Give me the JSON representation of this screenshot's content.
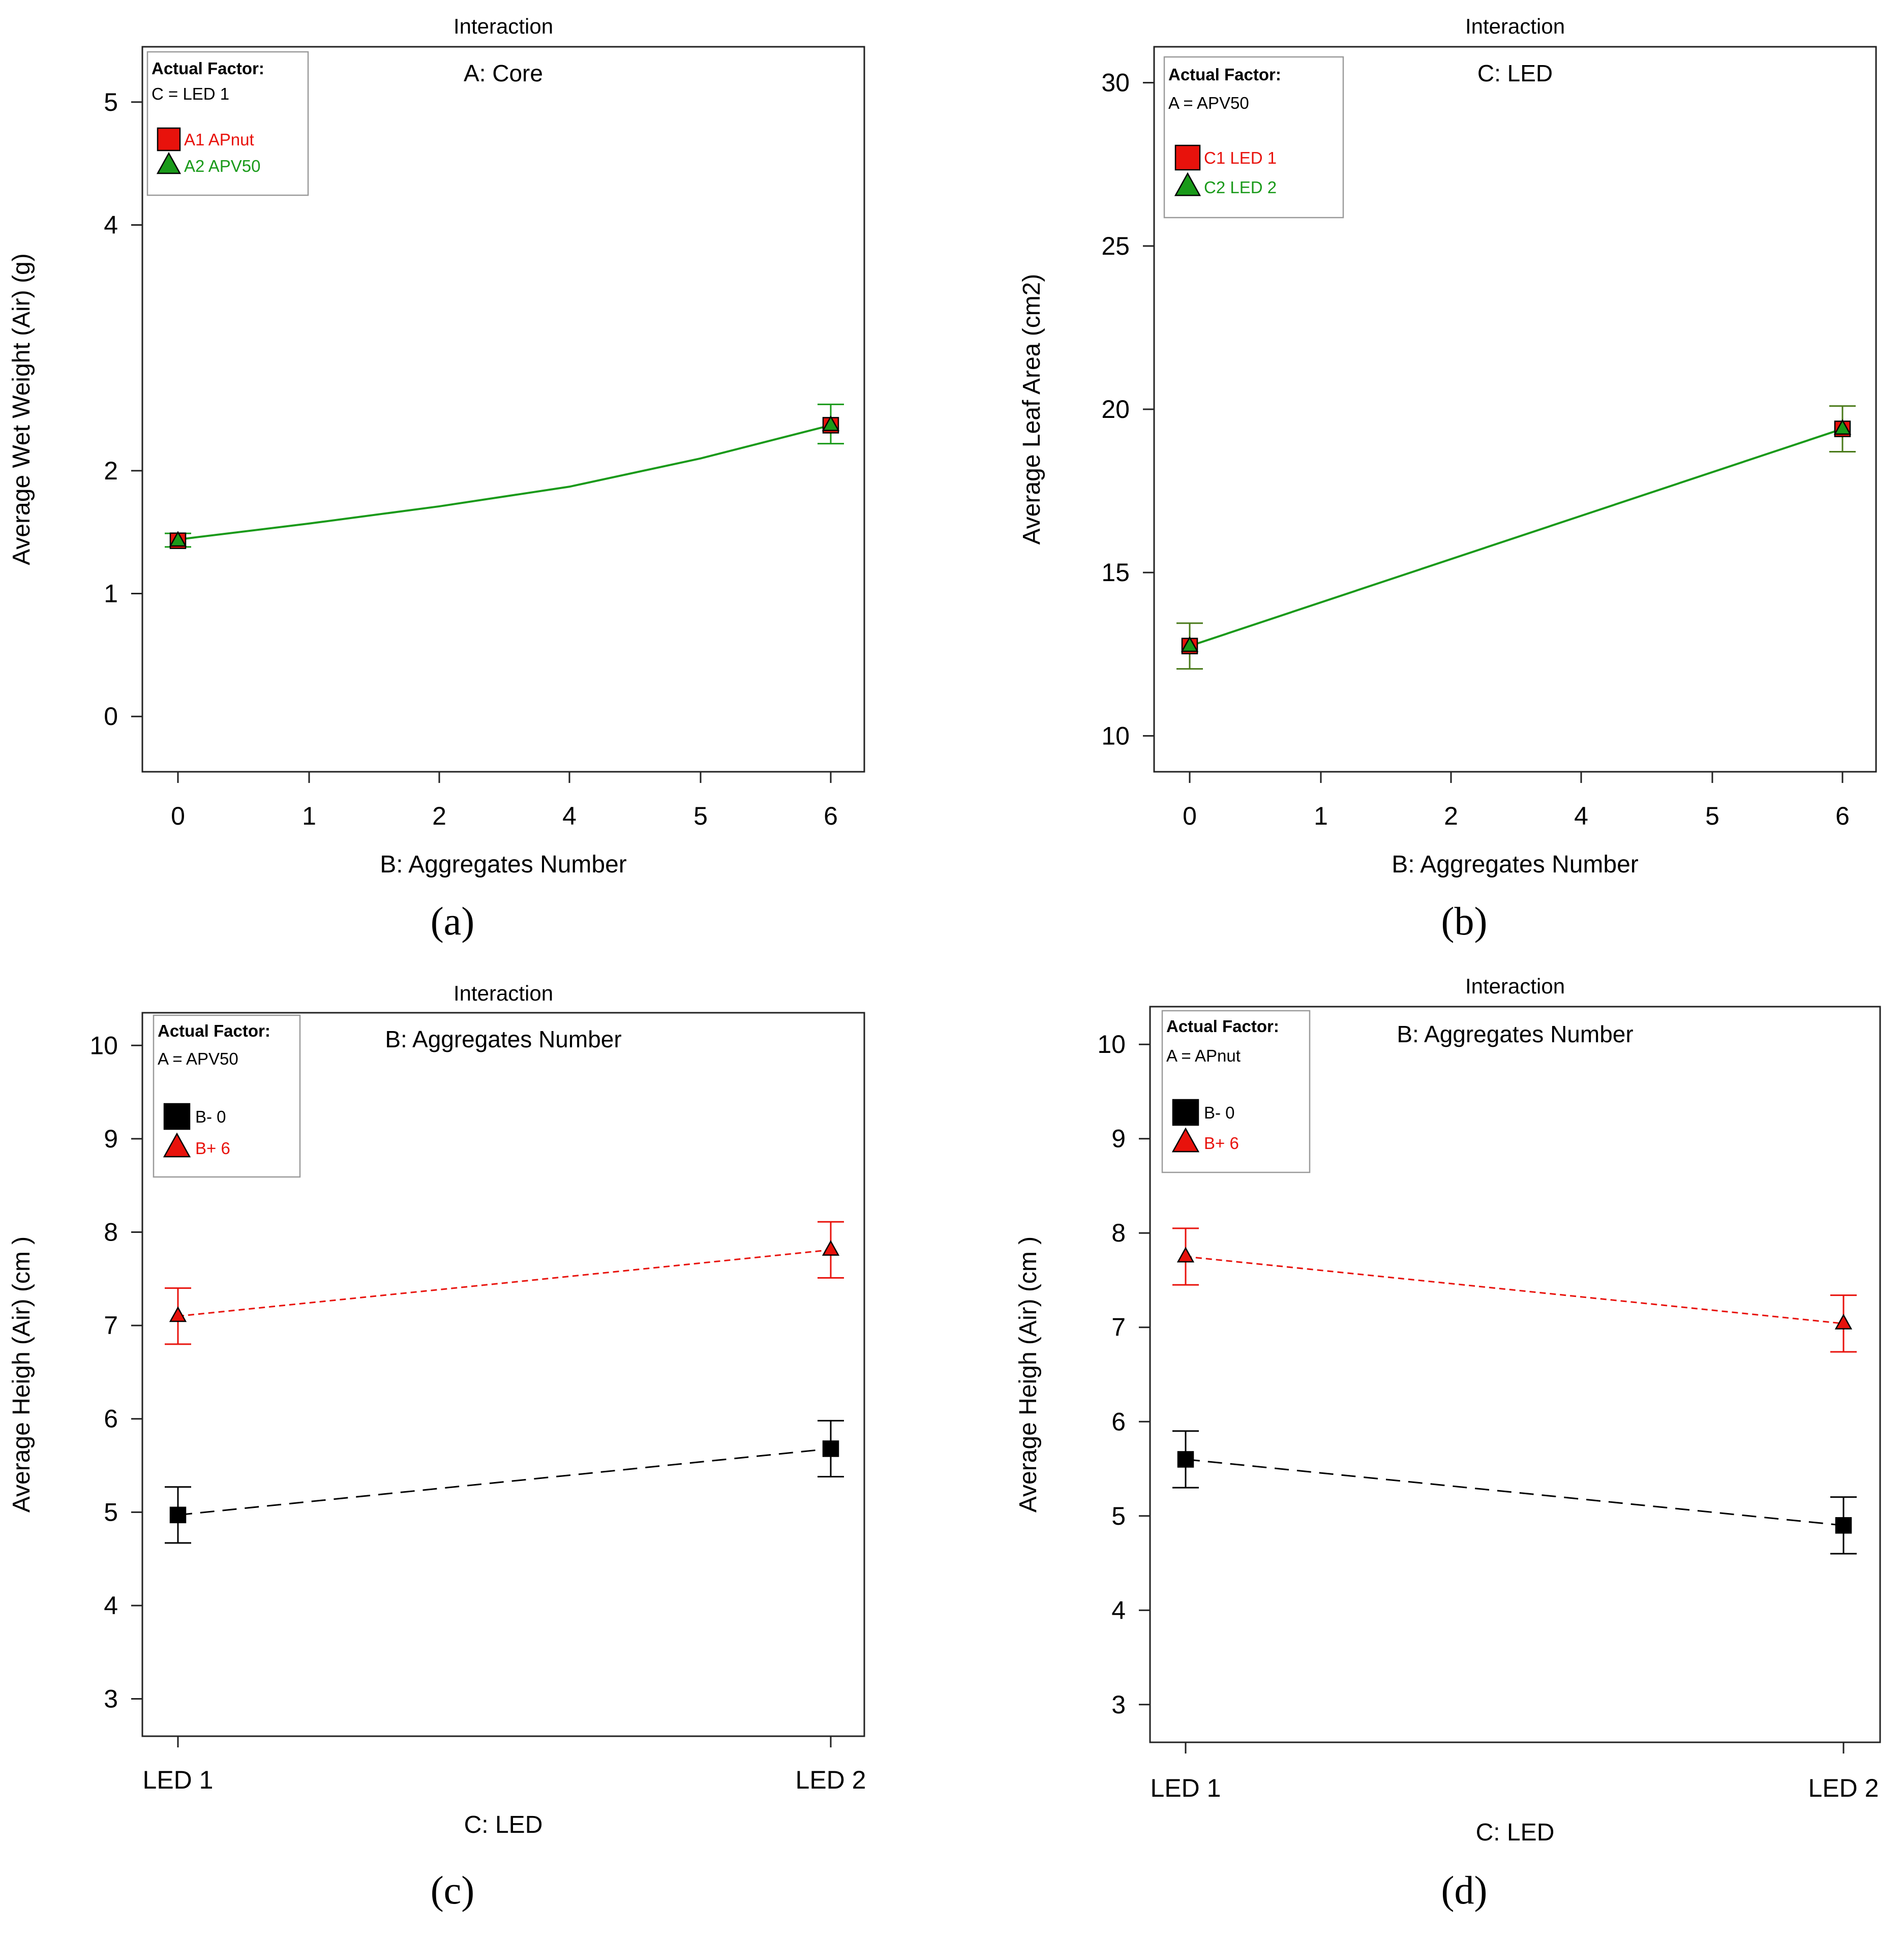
{
  "colors": {
    "red": "#e8120c",
    "green": "#1a9a1a",
    "dark_green": "#4a7a1a",
    "black": "#000000",
    "frame": "#222222",
    "legend_border": "#9a9a9a"
  },
  "chart_data": [
    {
      "type": "line",
      "panel_label": "(a)",
      "title": "Interaction",
      "factor_label": "A: Core",
      "xlabel": "B: Aggregates Number",
      "ylabel": "Average Wet Weight (Air) (g)",
      "categories": [
        "0",
        "1",
        "2",
        "4",
        "5",
        "6"
      ],
      "ylim": [
        -0.45,
        5.45
      ],
      "yticks": [
        0,
        1,
        2,
        4,
        5
      ],
      "legend": {
        "header": "Actual Factor:",
        "factor": "C = LED 1",
        "entries": [
          {
            "label": "A1 APnut",
            "marker": "square",
            "color": "red"
          },
          {
            "label": "A2 APV50",
            "marker": "triangle",
            "color": "green"
          }
        ]
      },
      "curve": {
        "x": [
          0,
          1,
          2,
          3,
          4,
          5
        ],
        "y": [
          1.44,
          1.57,
          1.71,
          1.87,
          2.1,
          2.37
        ],
        "color": "green",
        "dash": false
      },
      "series": [
        {
          "name": "A1 APnut",
          "marker": "square",
          "color": "red",
          "x": [
            0,
            5
          ],
          "y": [
            1.43,
            2.37
          ]
        },
        {
          "name": "A2 APV50",
          "marker": "triangle",
          "color": "green",
          "x": [
            0,
            5
          ],
          "y": [
            1.43,
            2.37
          ]
        }
      ],
      "error_bars": [
        {
          "x": 0,
          "low": 1.38,
          "high": 1.49,
          "color": "green"
        },
        {
          "x": 5,
          "low": 2.22,
          "high": 2.54,
          "color": "green"
        }
      ]
    },
    {
      "type": "line",
      "panel_label": "(b)",
      "title": "Interaction",
      "factor_label": "C: LED",
      "xlabel": "B: Aggregates Number",
      "ylabel": "Average Leaf Area (cm2)",
      "categories": [
        "0",
        "1",
        "2",
        "4",
        "5",
        "6"
      ],
      "ylim": [
        8.9,
        31.1
      ],
      "yticks": [
        10,
        15,
        20,
        25,
        30
      ],
      "legend": {
        "header": "Actual Factor:",
        "factor": "A = APV50",
        "entries": [
          {
            "label": "C1 LED 1",
            "marker": "square",
            "color": "red"
          },
          {
            "label": "C2 LED 2",
            "marker": "triangle",
            "color": "green"
          }
        ]
      },
      "curve": {
        "x": [
          0,
          5
        ],
        "y": [
          12.75,
          19.4
        ],
        "color": "green",
        "dash": false
      },
      "series": [
        {
          "name": "C1 LED 1",
          "marker": "square",
          "color": "red",
          "x": [
            0,
            5
          ],
          "y": [
            12.75,
            19.4
          ]
        },
        {
          "name": "C2 LED 2",
          "marker": "triangle",
          "color": "green",
          "x": [
            0,
            5
          ],
          "y": [
            12.75,
            19.4
          ]
        }
      ],
      "error_bars": [
        {
          "x": 0,
          "low": 12.05,
          "high": 13.45,
          "color": "dark_green"
        },
        {
          "x": 5,
          "low": 18.7,
          "high": 20.1,
          "color": "dark_green"
        }
      ]
    },
    {
      "type": "line",
      "panel_label": "(c)",
      "title": "Interaction",
      "factor_label": "B: Aggregates Number",
      "xlabel": "C: LED",
      "ylabel": "Average Heigh (Air) (cm )",
      "categories": [
        "LED 1",
        "LED 2"
      ],
      "ylim": [
        2.6,
        10.35
      ],
      "yticks": [
        3,
        4,
        5,
        6,
        7,
        8,
        9,
        10
      ],
      "legend": {
        "header": "Actual Factor:",
        "factor": "A = APV50",
        "entries": [
          {
            "label": "B- 0",
            "marker": "square",
            "color": "black"
          },
          {
            "label": "B+ 6",
            "marker": "triangle",
            "color": "red"
          }
        ]
      },
      "series": [
        {
          "name": "B- 0",
          "marker": "square",
          "color": "black",
          "dash": "long",
          "x": [
            0,
            1
          ],
          "y": [
            4.97,
            5.68
          ],
          "err_low": [
            4.67,
            5.38
          ],
          "err_high": [
            5.27,
            5.98
          ]
        },
        {
          "name": "B+ 6",
          "marker": "triangle",
          "color": "red",
          "dash": "short",
          "x": [
            0,
            1
          ],
          "y": [
            7.1,
            7.81
          ],
          "err_low": [
            6.8,
            7.51
          ],
          "err_high": [
            7.4,
            8.11
          ]
        }
      ]
    },
    {
      "type": "line",
      "panel_label": "(d)",
      "title": "Interaction",
      "factor_label": "B: Aggregates Number",
      "xlabel": "C: LED",
      "ylabel": "Average Heigh (Air) (cm )",
      "categories": [
        "LED 1",
        "LED 2"
      ],
      "ylim": [
        2.6,
        10.4
      ],
      "yticks": [
        3,
        4,
        5,
        6,
        7,
        8,
        9,
        10
      ],
      "legend": {
        "header": "Actual Factor:",
        "factor": "A = APnut",
        "entries": [
          {
            "label": "B- 0",
            "marker": "square",
            "color": "black"
          },
          {
            "label": "B+ 6",
            "marker": "triangle",
            "color": "red"
          }
        ]
      },
      "series": [
        {
          "name": "B- 0",
          "marker": "square",
          "color": "black",
          "dash": "long",
          "x": [
            0,
            1
          ],
          "y": [
            5.6,
            4.9
          ],
          "err_low": [
            5.3,
            4.6
          ],
          "err_high": [
            5.9,
            5.2
          ]
        },
        {
          "name": "B+ 6",
          "marker": "triangle",
          "color": "red",
          "dash": "short",
          "x": [
            0,
            1
          ],
          "y": [
            7.75,
            7.04
          ],
          "err_low": [
            7.45,
            6.74
          ],
          "err_high": [
            8.05,
            7.34
          ]
        }
      ]
    }
  ]
}
